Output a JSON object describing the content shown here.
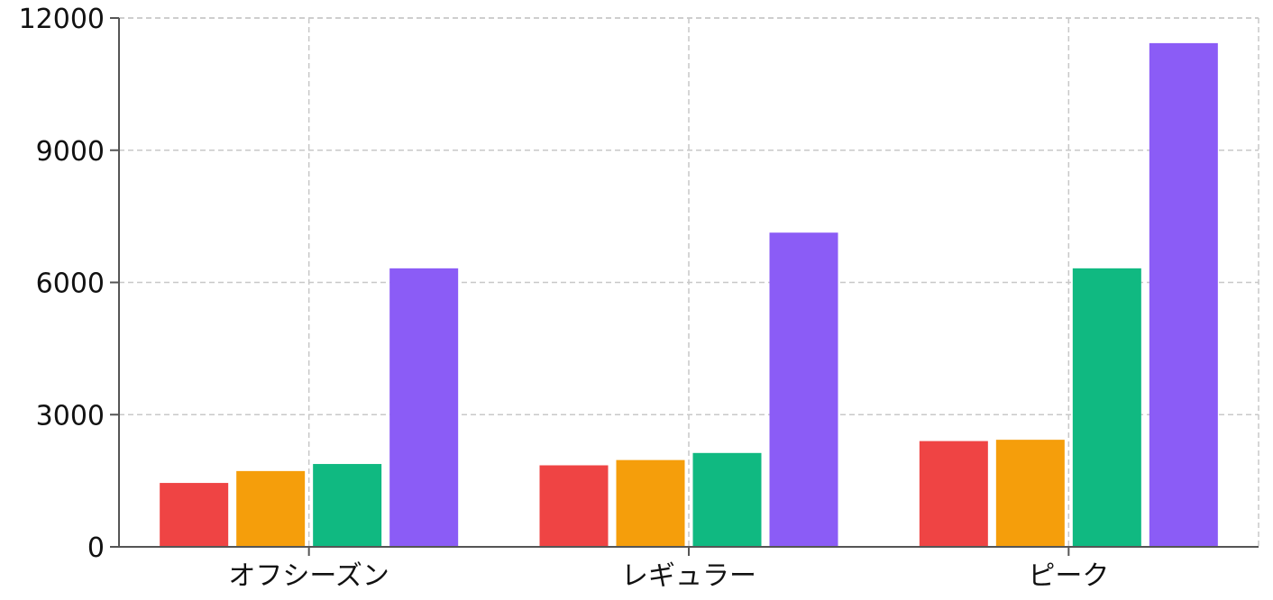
{
  "chart_data": {
    "type": "bar",
    "categories": [
      "オフシーズン",
      "レギュラー",
      "ピーク"
    ],
    "series": [
      {
        "values": [
          1450,
          1850,
          2400
        ],
        "color": "#ef4444"
      },
      {
        "values": [
          1720,
          1970,
          2430
        ],
        "color": "#f59e0b"
      },
      {
        "values": [
          1880,
          2130,
          6320
        ],
        "color": "#10b981"
      },
      {
        "values": [
          6320,
          7130,
          11430
        ],
        "color": "#8b5cf6"
      }
    ],
    "ylim": [
      0,
      12000
    ],
    "yticks": [
      0,
      3000,
      6000,
      9000,
      12000
    ],
    "ytick_labels": [
      "0",
      "3000",
      "6000",
      "9000",
      "12000"
    ],
    "grid": true,
    "title": "",
    "xlabel": "",
    "ylabel": ""
  }
}
